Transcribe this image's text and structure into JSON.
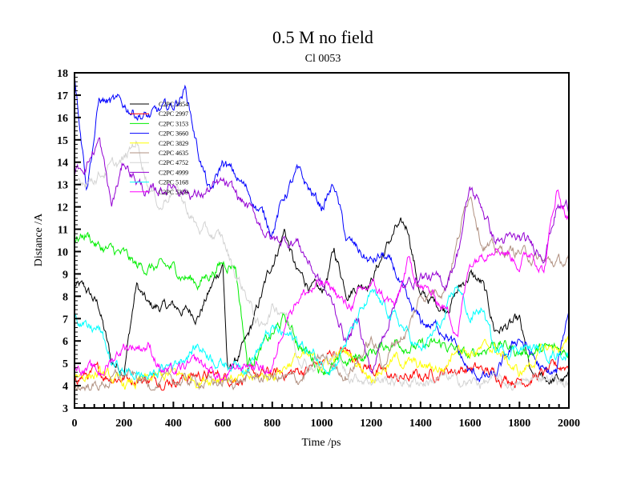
{
  "chart_data": {
    "type": "line",
    "title": "0.5 M no field",
    "subtitle": "Cl 0053",
    "xlabel": "Time /ps",
    "ylabel": "Distance /A",
    "xlim": [
      0,
      2000
    ],
    "ylim": [
      3,
      18
    ],
    "xticks": [
      "0",
      "200",
      "400",
      "600",
      "800",
      "1000",
      "1200",
      "1400",
      "1600",
      "1800",
      "2000"
    ],
    "yticks": [
      "3",
      "4",
      "5",
      "6",
      "7",
      "8",
      "9",
      "10",
      "11",
      "12",
      "13",
      "14",
      "15",
      "16",
      "17",
      "18"
    ],
    "legend_placement": "top-left",
    "series": [
      {
        "name": "C2PC 2854",
        "color": "#000000",
        "points": [
          [
            0,
            8.5
          ],
          [
            50,
            8.2
          ],
          [
            100,
            7.5
          ],
          [
            150,
            5
          ],
          [
            200,
            4.8
          ],
          [
            250,
            8.5
          ],
          [
            300,
            7.5
          ],
          [
            400,
            7.5
          ],
          [
            500,
            7.2
          ],
          [
            550,
            8.3
          ],
          [
            600,
            9.5
          ],
          [
            620,
            4.5
          ],
          [
            700,
            6
          ],
          [
            800,
            9.5
          ],
          [
            850,
            11
          ],
          [
            900,
            9
          ],
          [
            950,
            8.5
          ],
          [
            1000,
            8
          ],
          [
            1050,
            10
          ],
          [
            1100,
            8.3
          ],
          [
            1200,
            8.8
          ],
          [
            1300,
            11
          ],
          [
            1350,
            11
          ],
          [
            1400,
            8
          ],
          [
            1500,
            7.5
          ],
          [
            1600,
            9
          ],
          [
            1650,
            8.5
          ],
          [
            1700,
            6.5
          ],
          [
            1800,
            6.8
          ],
          [
            1850,
            4.2
          ],
          [
            1900,
            4.3
          ],
          [
            2000,
            4.2
          ]
        ]
      },
      {
        "name": "C2PC 2997",
        "color": "#ff0000",
        "points": [
          [
            0,
            4.5
          ],
          [
            100,
            4.5
          ],
          [
            200,
            4.4
          ],
          [
            300,
            4.3
          ],
          [
            400,
            4.3
          ],
          [
            500,
            4.5
          ],
          [
            600,
            4.4
          ],
          [
            700,
            4.4
          ],
          [
            800,
            4.5
          ],
          [
            900,
            4.6
          ],
          [
            1000,
            5
          ],
          [
            1050,
            5.5
          ],
          [
            1100,
            5.5
          ],
          [
            1200,
            4.8
          ],
          [
            1300,
            4.3
          ],
          [
            1400,
            4.4
          ],
          [
            1500,
            4.7
          ],
          [
            1600,
            4.8
          ],
          [
            1700,
            4.5
          ],
          [
            1800,
            4.3
          ],
          [
            1900,
            4.5
          ],
          [
            2000,
            5
          ]
        ]
      },
      {
        "name": "C2PC 3153",
        "color": "#00ee00",
        "points": [
          [
            0,
            10.5
          ],
          [
            50,
            10.8
          ],
          [
            100,
            10.2
          ],
          [
            200,
            9.8
          ],
          [
            250,
            9.3
          ],
          [
            300,
            9.3
          ],
          [
            400,
            9.2
          ],
          [
            500,
            8.6
          ],
          [
            600,
            9.5
          ],
          [
            650,
            9.5
          ],
          [
            700,
            5
          ],
          [
            800,
            6.2
          ],
          [
            850,
            7
          ],
          [
            900,
            6
          ],
          [
            1000,
            4.8
          ],
          [
            1100,
            5
          ],
          [
            1200,
            5.5
          ],
          [
            1300,
            6
          ],
          [
            1400,
            5.7
          ],
          [
            1500,
            5.8
          ],
          [
            1600,
            5.2
          ],
          [
            1700,
            6
          ],
          [
            1800,
            5.5
          ],
          [
            1900,
            5.6
          ],
          [
            2000,
            5.5
          ]
        ]
      },
      {
        "name": "C2PC 3660",
        "color": "#0000ff",
        "points": [
          [
            0,
            18
          ],
          [
            50,
            13
          ],
          [
            100,
            16.8
          ],
          [
            200,
            16.5
          ],
          [
            300,
            16
          ],
          [
            400,
            16.5
          ],
          [
            450,
            17.3
          ],
          [
            500,
            14.5
          ],
          [
            550,
            12.5
          ],
          [
            600,
            14
          ],
          [
            700,
            12.7
          ],
          [
            800,
            11
          ],
          [
            850,
            12.5
          ],
          [
            900,
            13.5
          ],
          [
            1000,
            12
          ],
          [
            1050,
            13
          ],
          [
            1100,
            10.5
          ],
          [
            1200,
            9.5
          ],
          [
            1250,
            9.8
          ],
          [
            1300,
            9
          ],
          [
            1350,
            7.5
          ],
          [
            1400,
            6.8
          ],
          [
            1500,
            6.5
          ],
          [
            1600,
            4.5
          ],
          [
            1700,
            4.3
          ],
          [
            1800,
            6.2
          ],
          [
            1900,
            4.5
          ],
          [
            1950,
            4.5
          ],
          [
            2000,
            7.5
          ]
        ]
      },
      {
        "name": "C2PC 3829",
        "color": "#ffff00",
        "points": [
          [
            0,
            4.5
          ],
          [
            100,
            4.5
          ],
          [
            200,
            4
          ],
          [
            300,
            4.2
          ],
          [
            400,
            4.5
          ],
          [
            500,
            4.3
          ],
          [
            600,
            4.5
          ],
          [
            700,
            4.2
          ],
          [
            800,
            4.5
          ],
          [
            900,
            5.3
          ],
          [
            1000,
            5
          ],
          [
            1100,
            5.5
          ],
          [
            1200,
            4.5
          ],
          [
            1300,
            5.2
          ],
          [
            1400,
            4.8
          ],
          [
            1500,
            4.8
          ],
          [
            1550,
            6
          ],
          [
            1600,
            5.5
          ],
          [
            1700,
            5.7
          ],
          [
            1800,
            4.5
          ],
          [
            1900,
            5.6
          ],
          [
            2000,
            5.8
          ]
        ]
      },
      {
        "name": "C2PC 4635",
        "color": "#b09080",
        "points": [
          [
            0,
            4
          ],
          [
            100,
            4
          ],
          [
            200,
            4.5
          ],
          [
            300,
            4.1
          ],
          [
            400,
            4.2
          ],
          [
            500,
            4.2
          ],
          [
            600,
            4.1
          ],
          [
            700,
            4.3
          ],
          [
            800,
            4.4
          ],
          [
            900,
            4.2
          ],
          [
            1000,
            5.2
          ],
          [
            1100,
            4.5
          ],
          [
            1200,
            6
          ],
          [
            1250,
            5
          ],
          [
            1300,
            6
          ],
          [
            1350,
            6.5
          ],
          [
            1400,
            8
          ],
          [
            1500,
            8.5
          ],
          [
            1550,
            10.5
          ],
          [
            1600,
            12.8
          ],
          [
            1650,
            10.5
          ],
          [
            1700,
            10
          ],
          [
            1800,
            10
          ],
          [
            1900,
            9.5
          ],
          [
            2000,
            9.5
          ]
        ]
      },
      {
        "name": "C2PC 4752",
        "color": "#d3d3d3",
        "points": [
          [
            0,
            13
          ],
          [
            100,
            13.5
          ],
          [
            200,
            14
          ],
          [
            250,
            15
          ],
          [
            300,
            13
          ],
          [
            350,
            12
          ],
          [
            400,
            13
          ],
          [
            500,
            11
          ],
          [
            600,
            10.5
          ],
          [
            650,
            9
          ],
          [
            700,
            8
          ],
          [
            750,
            6.5
          ],
          [
            800,
            7.5
          ],
          [
            850,
            7.5
          ],
          [
            900,
            5.5
          ],
          [
            950,
            5
          ],
          [
            1000,
            4.8
          ],
          [
            1050,
            5.5
          ],
          [
            1100,
            4.5
          ],
          [
            1200,
            4.3
          ],
          [
            1300,
            4.2
          ],
          [
            1400,
            4.2
          ],
          [
            1500,
            4.3
          ],
          [
            1600,
            4.1
          ],
          [
            1700,
            4.2
          ],
          [
            1800,
            4
          ],
          [
            1900,
            4.5
          ],
          [
            2000,
            4
          ]
        ]
      },
      {
        "name": "C2PC 4999",
        "color": "#9400d3",
        "points": [
          [
            0,
            13.5
          ],
          [
            50,
            14
          ],
          [
            100,
            15
          ],
          [
            150,
            12
          ],
          [
            200,
            14
          ],
          [
            300,
            12.5
          ],
          [
            400,
            13
          ],
          [
            500,
            12.5
          ],
          [
            600,
            13
          ],
          [
            700,
            12
          ],
          [
            800,
            10.5
          ],
          [
            900,
            10.5
          ],
          [
            1000,
            8.5
          ],
          [
            1050,
            7.5
          ],
          [
            1100,
            6
          ],
          [
            1150,
            7
          ],
          [
            1200,
            4.5
          ],
          [
            1300,
            8
          ],
          [
            1400,
            9
          ],
          [
            1500,
            8.5
          ],
          [
            1550,
            10
          ],
          [
            1600,
            12.8
          ],
          [
            1650,
            12
          ],
          [
            1700,
            10.5
          ],
          [
            1800,
            10.5
          ],
          [
            1900,
            10
          ],
          [
            1950,
            12
          ],
          [
            2000,
            12
          ]
        ]
      },
      {
        "name": "C2PC 5168",
        "color": "#00ffff",
        "points": [
          [
            0,
            7.3
          ],
          [
            50,
            6.5
          ],
          [
            100,
            6.5
          ],
          [
            150,
            5
          ],
          [
            200,
            4.6
          ],
          [
            300,
            4.4
          ],
          [
            400,
            5
          ],
          [
            500,
            5.8
          ],
          [
            600,
            5
          ],
          [
            700,
            5
          ],
          [
            800,
            6.5
          ],
          [
            900,
            6
          ],
          [
            1000,
            5
          ],
          [
            1050,
            5
          ],
          [
            1100,
            6
          ],
          [
            1200,
            8
          ],
          [
            1300,
            7
          ],
          [
            1400,
            5.5
          ],
          [
            1500,
            7
          ],
          [
            1550,
            8.5
          ],
          [
            1600,
            7
          ],
          [
            1650,
            7.5
          ],
          [
            1700,
            5.5
          ],
          [
            1800,
            5.8
          ],
          [
            1900,
            5.5
          ],
          [
            2000,
            5.5
          ]
        ]
      },
      {
        "name": "C2PC 5359",
        "color": "#ff00ff",
        "points": [
          [
            0,
            5
          ],
          [
            100,
            4.5
          ],
          [
            200,
            5.8
          ],
          [
            300,
            5.8
          ],
          [
            350,
            4.8
          ],
          [
            400,
            4.5
          ],
          [
            500,
            5
          ],
          [
            600,
            4.3
          ],
          [
            700,
            5
          ],
          [
            800,
            4.7
          ],
          [
            850,
            7
          ],
          [
            900,
            8
          ],
          [
            1000,
            8.5
          ],
          [
            1050,
            8.3
          ],
          [
            1100,
            7.5
          ],
          [
            1200,
            8.5
          ],
          [
            1300,
            7.5
          ],
          [
            1350,
            9.5
          ],
          [
            1400,
            8.5
          ],
          [
            1500,
            7.5
          ],
          [
            1550,
            6.5
          ],
          [
            1600,
            9.5
          ],
          [
            1700,
            10.5
          ],
          [
            1800,
            9.5
          ],
          [
            1850,
            10
          ],
          [
            1900,
            9.2
          ],
          [
            1950,
            12.8
          ],
          [
            2000,
            11.5
          ]
        ]
      }
    ]
  }
}
